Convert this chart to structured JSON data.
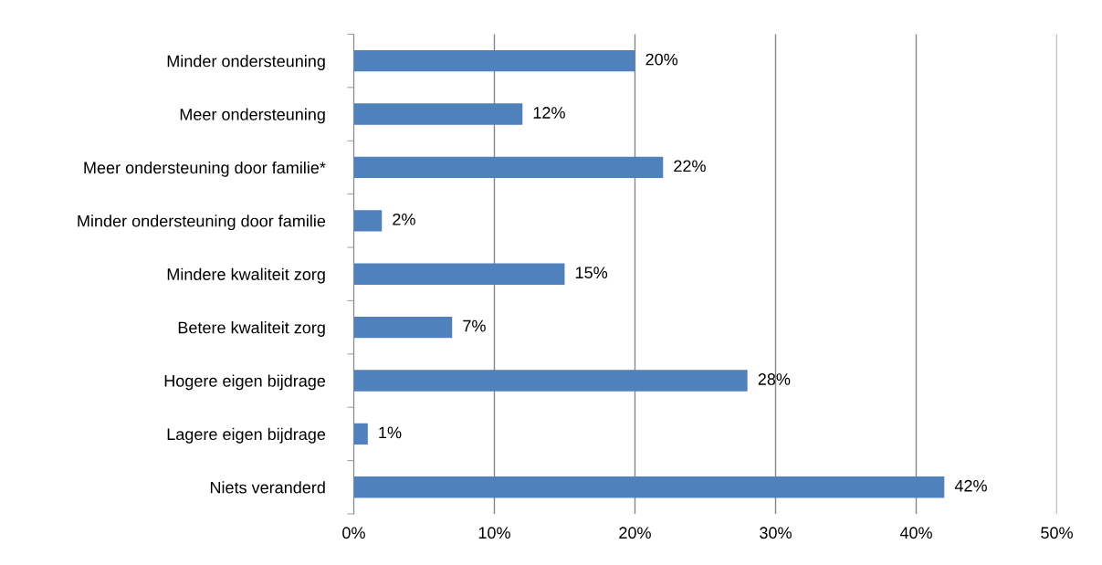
{
  "chart_data": {
    "type": "bar",
    "orientation": "horizontal",
    "categories": [
      "Minder ondersteuning",
      "Meer ondersteuning",
      "Meer ondersteuning door familie*",
      "Minder ondersteuning door familie",
      "Mindere kwaliteit zorg",
      "Betere kwaliteit zorg",
      "Hogere eigen bijdrage",
      "Lagere eigen bijdrage",
      "Niets veranderd"
    ],
    "values": [
      20,
      12,
      22,
      2,
      15,
      7,
      28,
      1,
      42
    ],
    "value_labels": [
      "20%",
      "12%",
      "22%",
      "2%",
      "15%",
      "7%",
      "28%",
      "1%",
      "42%"
    ],
    "color": "#4f81bd",
    "xlim": [
      0,
      50
    ],
    "xticks": [
      {
        "value": 0,
        "label": "0%"
      },
      {
        "value": 10,
        "label": "10%"
      },
      {
        "value": 20,
        "label": "20%"
      },
      {
        "value": 30,
        "label": "30%"
      },
      {
        "value": 40,
        "label": "40%"
      },
      {
        "value": 50,
        "label": "50%"
      }
    ],
    "grid": "x"
  }
}
